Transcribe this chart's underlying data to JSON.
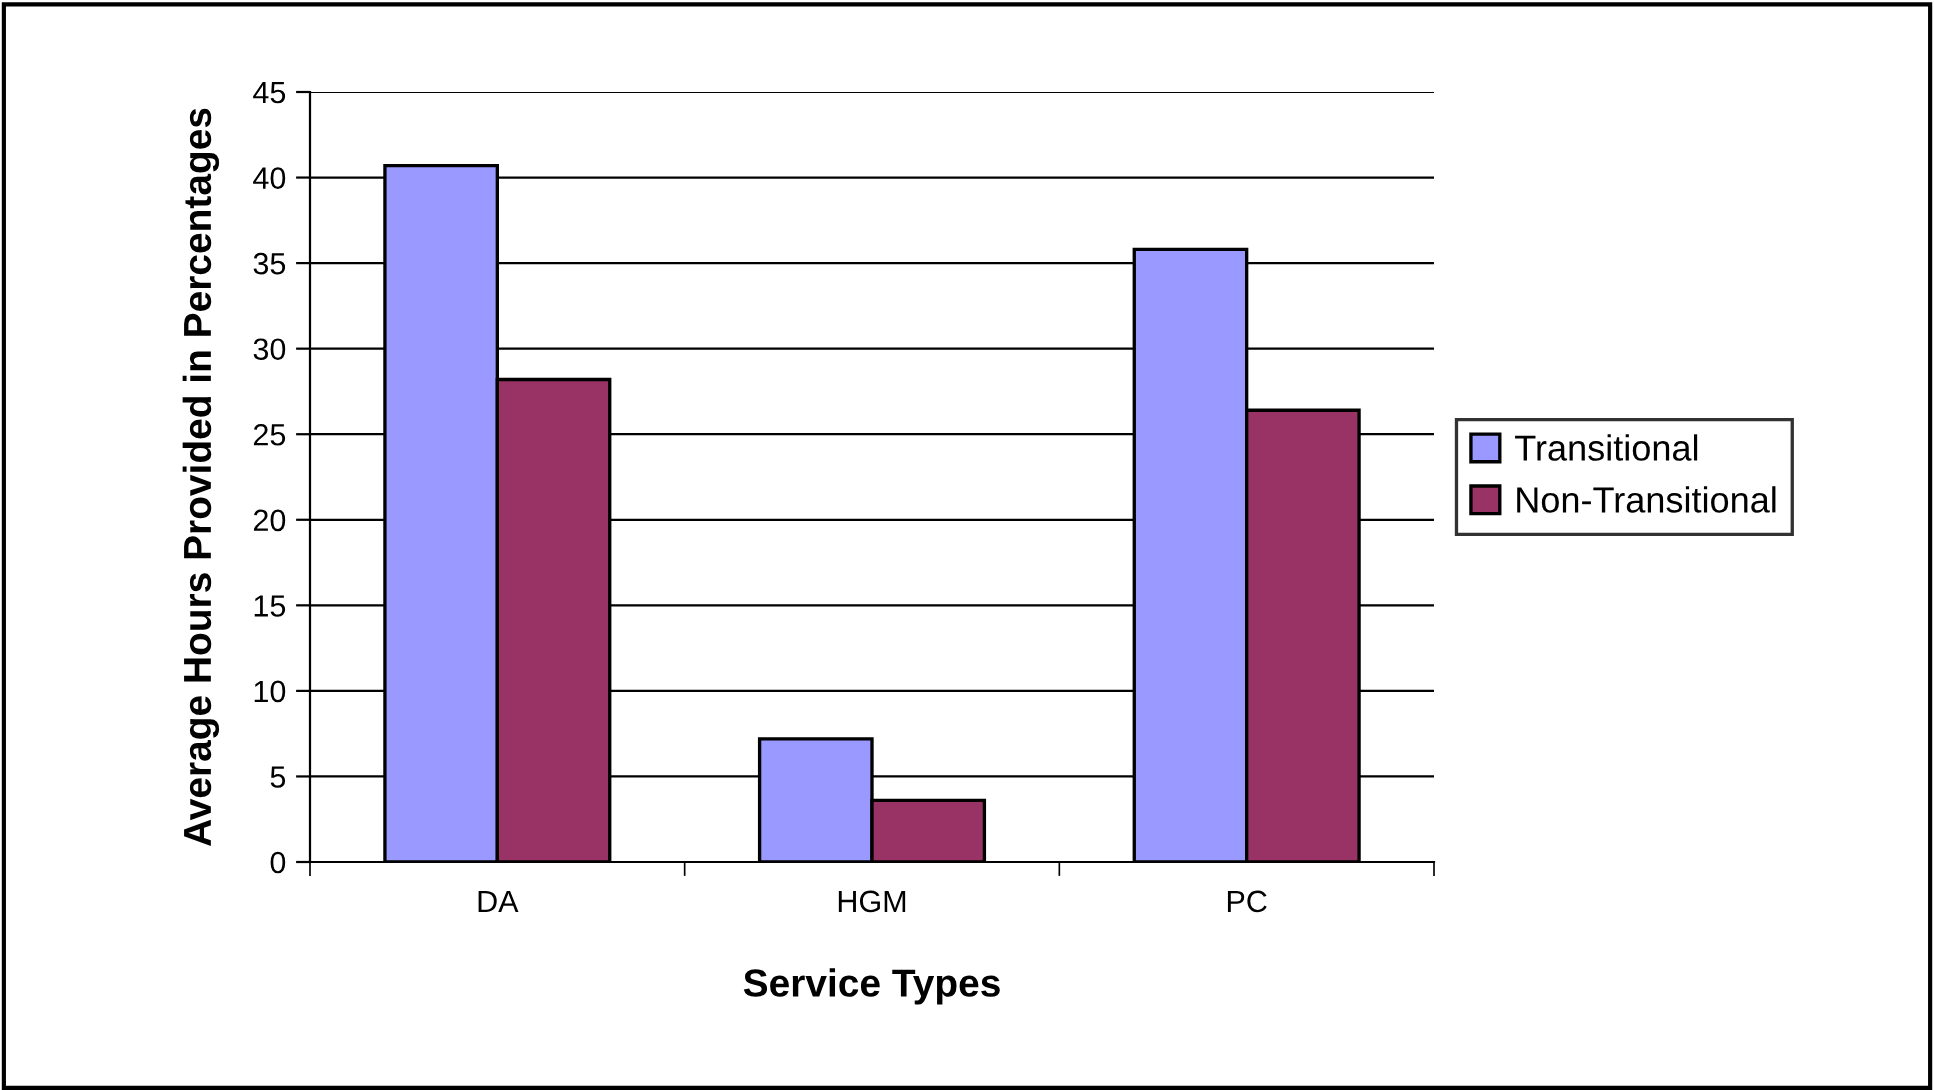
{
  "chart_data": {
    "type": "bar",
    "xlabel": "Service Types",
    "ylabel": "Average Hours Provided in Percentages",
    "categories": [
      "DA",
      "HGM",
      "PC"
    ],
    "series": [
      {
        "name": "Transitional",
        "color": "#9999ff",
        "values": [
          40.7,
          7.2,
          35.8
        ]
      },
      {
        "name": "Non-Transitional",
        "color": "#993366",
        "values": [
          28.2,
          3.6,
          26.4
        ]
      }
    ],
    "ylim": [
      0,
      45
    ],
    "yticks": [
      0,
      5,
      10,
      15,
      20,
      25,
      30,
      35,
      40,
      45
    ],
    "grid": "y",
    "legend": "right"
  }
}
